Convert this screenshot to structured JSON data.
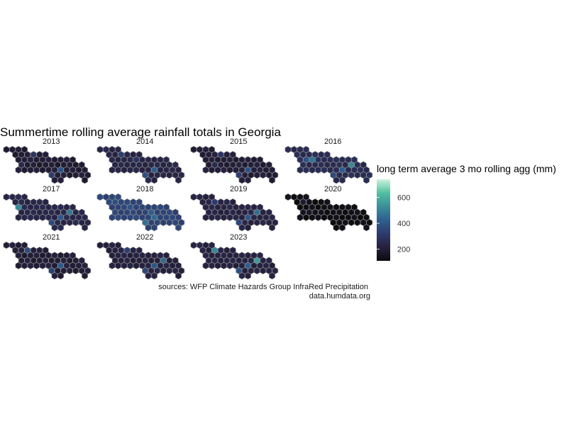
{
  "chart_data": {
    "type": "heatmap",
    "subtype": "hexbin small multiples",
    "title": "Summertime rolling average rainfall totals in Georgia",
    "legend": {
      "title": "long term average 3 mo rolling agg (mm)",
      "ticks": [
        200,
        400,
        600
      ],
      "range": [
        110,
        740
      ],
      "colors": [
        "#0b0b0b",
        "#26213f",
        "#2d3b6d",
        "#2f5f8f",
        "#3a8f99",
        "#52bfa0",
        "#cdf3de"
      ],
      "placement": "right"
    },
    "facets": [
      {
        "year": "2013",
        "base": 195,
        "highlights": [
          [
            1,
            4,
            290
          ],
          [
            4,
            9,
            390
          ],
          [
            5,
            7,
            320
          ],
          [
            3,
            2,
            250
          ]
        ]
      },
      {
        "year": "2014",
        "base": 230,
        "highlights": [
          [
            1,
            3,
            330
          ],
          [
            4,
            9,
            420
          ],
          [
            5,
            7,
            380
          ],
          [
            2,
            6,
            280
          ]
        ]
      },
      {
        "year": "2015",
        "base": 200,
        "highlights": [
          [
            1,
            4,
            300
          ],
          [
            4,
            9,
            390
          ],
          [
            5,
            7,
            330
          ],
          [
            3,
            3,
            250
          ]
        ]
      },
      {
        "year": "2016",
        "base": 260,
        "highlights": [
          [
            2,
            4,
            470
          ],
          [
            4,
            9,
            420
          ],
          [
            3,
            10,
            520
          ],
          [
            2,
            3,
            390
          ],
          [
            5,
            7,
            360
          ]
        ]
      },
      {
        "year": "2017",
        "base": 240,
        "highlights": [
          [
            2,
            2,
            520
          ],
          [
            4,
            9,
            400
          ],
          [
            3,
            10,
            480
          ],
          [
            5,
            7,
            360
          ]
        ]
      },
      {
        "year": "2018",
        "base": 345,
        "highlights": [
          [
            3,
            8,
            420
          ],
          [
            4,
            9,
            450
          ],
          [
            5,
            7,
            460
          ],
          [
            1,
            2,
            380
          ],
          [
            2,
            5,
            390
          ]
        ]
      },
      {
        "year": "2019",
        "base": 225,
        "highlights": [
          [
            1,
            3,
            320
          ],
          [
            4,
            9,
            400
          ],
          [
            3,
            10,
            460
          ],
          [
            5,
            7,
            350
          ]
        ]
      },
      {
        "year": "2020",
        "base": 130,
        "highlights": [
          [
            2,
            1,
            380
          ],
          [
            1,
            2,
            180
          ],
          [
            3,
            3,
            160
          ]
        ]
      },
      {
        "year": "2021",
        "base": 200,
        "highlights": [
          [
            1,
            3,
            370
          ],
          [
            4,
            9,
            410
          ],
          [
            5,
            7,
            340
          ]
        ]
      },
      {
        "year": "2022",
        "base": 215,
        "highlights": [
          [
            1,
            4,
            330
          ],
          [
            3,
            10,
            450
          ],
          [
            4,
            9,
            400
          ],
          [
            5,
            7,
            350
          ]
        ]
      },
      {
        "year": "2023",
        "base": 220,
        "highlights": [
          [
            1,
            3,
            520
          ],
          [
            3,
            10,
            560
          ],
          [
            4,
            9,
            420
          ],
          [
            5,
            7,
            380
          ]
        ]
      }
    ],
    "hex_layout_rows": [
      [
        0,
        1,
        2,
        3
      ],
      [
        1,
        2,
        3,
        4,
        5,
        6
      ],
      [
        2,
        3,
        4,
        5,
        6,
        7,
        8,
        9,
        10,
        11
      ],
      [
        2,
        3,
        4,
        5,
        6,
        7,
        8,
        9,
        10,
        11,
        12
      ],
      [
        2,
        3,
        4,
        5,
        6,
        7,
        8,
        9,
        10,
        11,
        12,
        13
      ],
      [
        7,
        8,
        9,
        10,
        11,
        12,
        13
      ],
      [
        8,
        9,
        13
      ]
    ],
    "caption": [
      "sources: WFP Climate Hazards Group InfraRed Precipitation",
      "data.humdata.org"
    ]
  }
}
